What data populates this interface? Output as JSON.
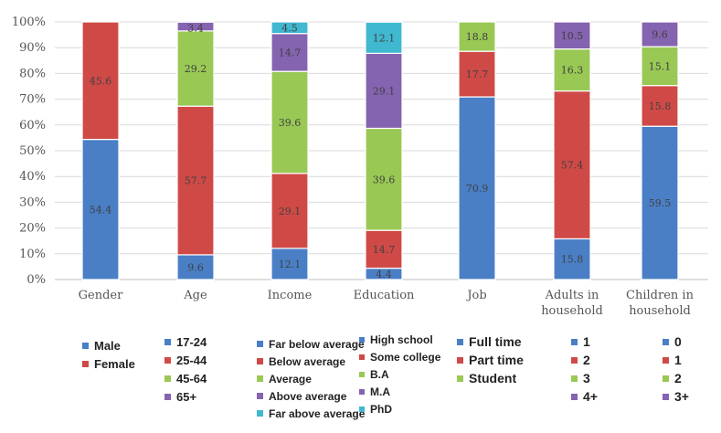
{
  "chart_data": {
    "type": "bar",
    "stacked": true,
    "percent": true,
    "ylim": [
      0,
      100
    ],
    "yticks": [
      "0%",
      "10%",
      "20%",
      "30%",
      "40%",
      "50%",
      "60%",
      "70%",
      "80%",
      "90%",
      "100%"
    ],
    "grid": true,
    "categories": [
      [
        "Gender"
      ],
      [
        "Age"
      ],
      [
        "Income"
      ],
      [
        "Education"
      ],
      [
        "Job"
      ],
      [
        "Adults in",
        "household"
      ],
      [
        "Children in",
        "household"
      ]
    ],
    "groups": [
      {
        "name": "Gender",
        "segments": [
          {
            "label": "Male",
            "value": 54.4,
            "color": "#4a7fc6",
            "text": "54.4"
          },
          {
            "label": "Female",
            "value": 45.6,
            "color": "#cf4a47",
            "text": "45.6"
          }
        ]
      },
      {
        "name": "Age",
        "segments": [
          {
            "label": "17-24",
            "value": 9.6,
            "color": "#4a7fc6",
            "text": "9.6"
          },
          {
            "label": "25-44",
            "value": 57.7,
            "color": "#cf4a47",
            "text": "57.7"
          },
          {
            "label": "45-64",
            "value": 29.2,
            "color": "#99c855",
            "text": "29.2"
          },
          {
            "label": "65+",
            "value": 3.4,
            "color": "#8463b0",
            "text": "3.4"
          }
        ]
      },
      {
        "name": "Income",
        "segments": [
          {
            "label": "Far below average",
            "value": 12.1,
            "color": "#4a7fc6",
            "text": "12.1"
          },
          {
            "label": "Below average",
            "value": 29.1,
            "color": "#cf4a47",
            "text": "29.1"
          },
          {
            "label": "Average",
            "value": 39.6,
            "color": "#99c855",
            "text": "39.6"
          },
          {
            "label": "Above average",
            "value": 14.7,
            "color": "#8463b0",
            "text": "14.7"
          },
          {
            "label": "Far above average",
            "value": 4.5,
            "color": "#40b8d0",
            "text": "4.5"
          }
        ]
      },
      {
        "name": "Education",
        "segments": [
          {
            "label": "High school",
            "value": 4.4,
            "color": "#4a7fc6",
            "text": "4.4"
          },
          {
            "label": "Some college",
            "value": 14.7,
            "color": "#cf4a47",
            "text": "14.7"
          },
          {
            "label": "B.A",
            "value": 39.6,
            "color": "#99c855",
            "text": "39.6"
          },
          {
            "label": "M.A",
            "value": 29.1,
            "color": "#8463b0",
            "text": "29.1"
          },
          {
            "label": "PhD",
            "value": 12.1,
            "color": "#40b8d0",
            "text": "12.1"
          }
        ]
      },
      {
        "name": "Job",
        "segments": [
          {
            "label": "Full time",
            "value": 70.9,
            "color": "#4a7fc6",
            "text": "70.9"
          },
          {
            "label": "Part time",
            "value": 17.7,
            "color": "#cf4a47",
            "text": "17.7"
          },
          {
            "label": "Student",
            "value": 18.8,
            "color": "#99c855",
            "text": "18.8"
          }
        ]
      },
      {
        "name": "Adults in household",
        "segments": [
          {
            "label": "1",
            "value": 15.8,
            "color": "#4a7fc6",
            "text": "15.8"
          },
          {
            "label": "2",
            "value": 57.4,
            "color": "#cf4a47",
            "text": "57.4"
          },
          {
            "label": "3",
            "value": 16.3,
            "color": "#99c855",
            "text": "16.3"
          },
          {
            "label": "4+",
            "value": 10.5,
            "color": "#8463b0",
            "text": "10.5"
          }
        ]
      },
      {
        "name": "Children in household",
        "segments": [
          {
            "label": "0",
            "value": 59.5,
            "color": "#4a7fc6",
            "text": "59.5"
          },
          {
            "label": "1",
            "value": 15.8,
            "color": "#cf4a47",
            "text": "15.8"
          },
          {
            "label": "2",
            "value": 15.1,
            "color": "#99c855",
            "text": "15.1"
          },
          {
            "label": "3+",
            "value": 9.6,
            "color": "#8463b0",
            "text": "9.6"
          }
        ]
      }
    ]
  },
  "legend": [
    {
      "group": "Gender",
      "items": [
        {
          "label": "Male",
          "color": "#4a7fc6"
        },
        {
          "label": "Female",
          "color": "#cf4a47"
        }
      ]
    },
    {
      "group": "Age",
      "items": [
        {
          "label": "17-24",
          "color": "#4a7fc6"
        },
        {
          "label": "25-44",
          "color": "#cf4a47"
        },
        {
          "label": "45-64",
          "color": "#99c855"
        },
        {
          "label": "65+",
          "color": "#8463b0"
        }
      ]
    },
    {
      "group": "Income",
      "items": [
        {
          "label": "Far below average",
          "color": "#4a7fc6"
        },
        {
          "label": "Below average",
          "color": "#cf4a47"
        },
        {
          "label": "Average",
          "color": "#99c855"
        },
        {
          "label": "Above average",
          "color": "#8463b0"
        },
        {
          "label": "Far above average",
          "color": "#40b8d0"
        }
      ]
    },
    {
      "group": "Education",
      "items": [
        {
          "label": "High school",
          "color": "#4a7fc6"
        },
        {
          "label": "Some college",
          "color": "#cf4a47"
        },
        {
          "label": "B.A",
          "color": "#99c855"
        },
        {
          "label": "M.A",
          "color": "#8463b0"
        },
        {
          "label": "PhD",
          "color": "#40b8d0"
        }
      ]
    },
    {
      "group": "Job",
      "items": [
        {
          "label": "Full time",
          "color": "#4a7fc6"
        },
        {
          "label": "Part time",
          "color": "#cf4a47"
        },
        {
          "label": "Student",
          "color": "#99c855"
        }
      ]
    },
    {
      "group": "Adults in household",
      "items": [
        {
          "label": "1",
          "color": "#4a7fc6"
        },
        {
          "label": "2",
          "color": "#cf4a47"
        },
        {
          "label": "3",
          "color": "#99c855"
        },
        {
          "label": "4+",
          "color": "#8463b0"
        }
      ]
    },
    {
      "group": "Children in household",
      "items": [
        {
          "label": "0",
          "color": "#4a7fc6"
        },
        {
          "label": "1",
          "color": "#cf4a47"
        },
        {
          "label": "2",
          "color": "#99c855"
        },
        {
          "label": "3+",
          "color": "#8463b0"
        }
      ]
    }
  ]
}
